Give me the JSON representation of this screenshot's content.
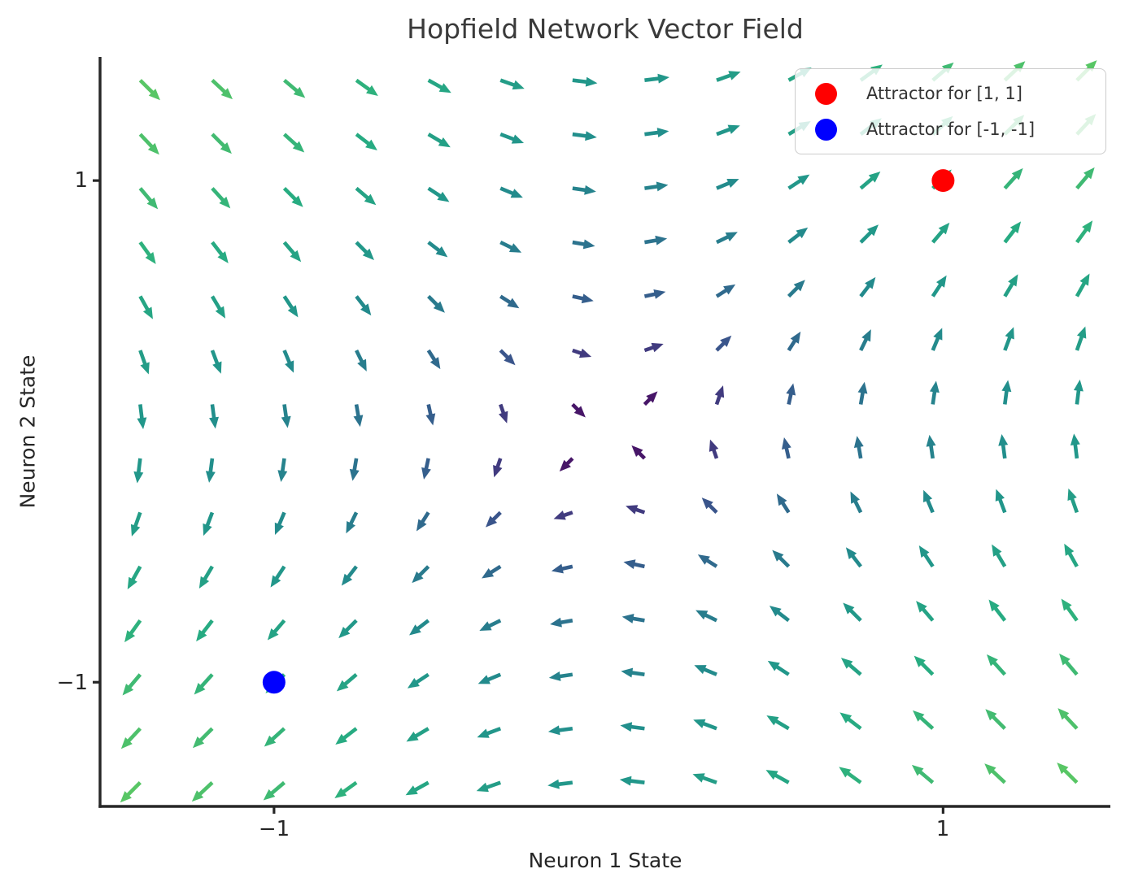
{
  "title": "Hopfield Network Vector Field",
  "chart_data": {
    "type": "quiver",
    "title": "Hopfield Network Vector Field",
    "xlabel": "Neuron 1 State",
    "ylabel": "Neuron 2 State",
    "xlim": [
      -1.52,
      1.5
    ],
    "ylim": [
      -1.495,
      1.493
    ],
    "xticks": [
      {
        "value": -1,
        "label": "−1"
      },
      {
        "value": 1,
        "label": "1"
      }
    ],
    "yticks": [
      {
        "value": 1,
        "label": "1"
      },
      {
        "value": -1,
        "label": "−1"
      }
    ],
    "grid": {
      "min": -1.4,
      "max": 1.4,
      "points_per_axis": 14
    },
    "field": {
      "u": "tanh(neuron2)",
      "v": "tanh(neuron1)",
      "description": "Hopfield network flow for weights W=[[0,1],[1,0]] storing patterns [1,1] and [-1,-1]"
    },
    "colormap": "viridis",
    "color_by": "vector magnitude",
    "color_norm_max": 1.7,
    "attractors": [
      {
        "x": 1,
        "y": 1,
        "color": "#ff0000",
        "label": "Attractor for [1, 1]"
      },
      {
        "x": -1,
        "y": -1,
        "color": "#0000ff",
        "label": "Attractor for [-1, -1]"
      }
    ],
    "legend": {
      "position": "upper right",
      "entries": [
        {
          "marker_color": "#ff0000",
          "label": "Attractor for [1, 1]"
        },
        {
          "marker_color": "#0000ff",
          "label": "Attractor for [-1, -1]"
        }
      ]
    },
    "axis_color": "#262626"
  }
}
